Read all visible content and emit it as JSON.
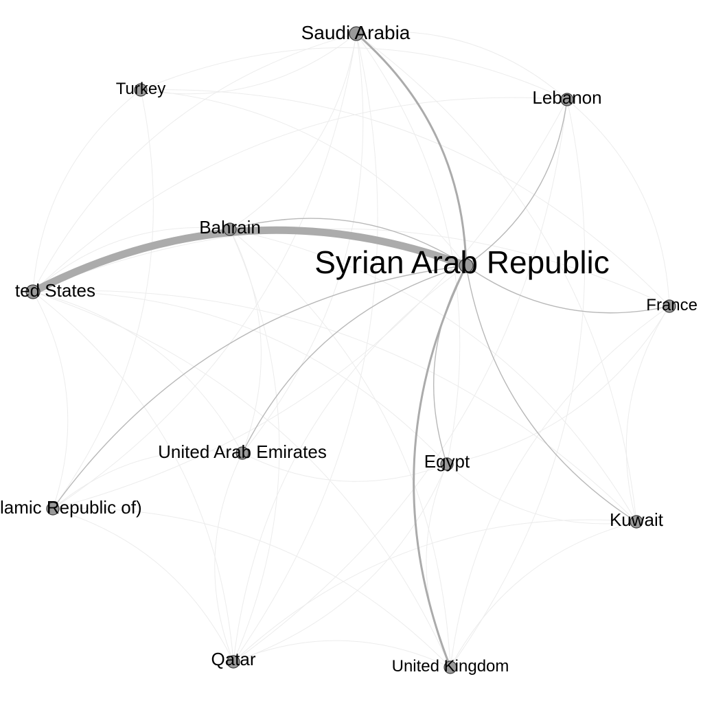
{
  "graph": {
    "colors": {
      "background": "#ffffff",
      "node_fill": "#9a9a9a",
      "node_stroke": "#3a3a3a",
      "label": "#000000",
      "edge_strong": "#ababab",
      "edge_medium": "#b8b8b8",
      "edge_faint": "#ececec"
    },
    "nodes": [
      {
        "id": "syria",
        "label": "Syrian Arab Republic"
      },
      {
        "id": "saudi",
        "label": "Saudi Arabia"
      },
      {
        "id": "turkey",
        "label": "Turkey"
      },
      {
        "id": "lebanon",
        "label": "Lebanon"
      },
      {
        "id": "bahrain",
        "label": "Bahrain"
      },
      {
        "id": "usa",
        "label": "ted States"
      },
      {
        "id": "france",
        "label": "France"
      },
      {
        "id": "uae",
        "label": "United Arab Emirates"
      },
      {
        "id": "egypt",
        "label": "Egypt"
      },
      {
        "id": "iran",
        "label": "lamic Republic of)"
      },
      {
        "id": "kuwait",
        "label": "Kuwait"
      },
      {
        "id": "qatar",
        "label": "Qatar"
      },
      {
        "id": "uk",
        "label": "United Kingdom"
      }
    ],
    "edges": [
      {
        "source": "usa",
        "target": "syria",
        "weight": 10
      },
      {
        "source": "saudi",
        "target": "syria",
        "weight": 3
      },
      {
        "source": "uk",
        "target": "syria",
        "weight": 2
      },
      {
        "source": "kuwait",
        "target": "syria",
        "weight": 1.5
      },
      {
        "source": "lebanon",
        "target": "syria",
        "weight": 1.2
      },
      {
        "source": "egypt",
        "target": "syria",
        "weight": 1.2
      },
      {
        "source": "iran",
        "target": "syria",
        "weight": 1
      },
      {
        "source": "uae",
        "target": "syria",
        "weight": 1
      },
      {
        "source": "france",
        "target": "syria",
        "weight": 1
      },
      {
        "source": "bahrain",
        "target": "syria",
        "weight": 1
      },
      {
        "source": "turkey",
        "target": "syria",
        "weight": 0.5
      },
      {
        "source": "qatar",
        "target": "syria",
        "weight": 0.5
      },
      {
        "source": "usa",
        "target": "saudi",
        "weight": 0.3
      },
      {
        "source": "usa",
        "target": "turkey",
        "weight": 0.3
      },
      {
        "source": "usa",
        "target": "lebanon",
        "weight": 0.3
      },
      {
        "source": "usa",
        "target": "bahrain",
        "weight": 0.3
      },
      {
        "source": "usa",
        "target": "iran",
        "weight": 0.3
      },
      {
        "source": "usa",
        "target": "qatar",
        "weight": 0.3
      },
      {
        "source": "usa",
        "target": "uk",
        "weight": 0.3
      },
      {
        "source": "usa",
        "target": "france",
        "weight": 0.3
      },
      {
        "source": "usa",
        "target": "kuwait",
        "weight": 0.3
      },
      {
        "source": "usa",
        "target": "uae",
        "weight": 0.3
      },
      {
        "source": "usa",
        "target": "egypt",
        "weight": 0.3
      },
      {
        "source": "saudi",
        "target": "turkey",
        "weight": 0.3
      },
      {
        "source": "saudi",
        "target": "lebanon",
        "weight": 0.3
      },
      {
        "source": "saudi",
        "target": "bahrain",
        "weight": 0.3
      },
      {
        "source": "saudi",
        "target": "qatar",
        "weight": 0.3
      },
      {
        "source": "saudi",
        "target": "uae",
        "weight": 0.3
      },
      {
        "source": "saudi",
        "target": "egypt",
        "weight": 0.3
      },
      {
        "source": "saudi",
        "target": "kuwait",
        "weight": 0.3
      },
      {
        "source": "saudi",
        "target": "iran",
        "weight": 0.3
      },
      {
        "source": "turkey",
        "target": "lebanon",
        "weight": 0.3
      },
      {
        "source": "turkey",
        "target": "iran",
        "weight": 0.3
      },
      {
        "source": "turkey",
        "target": "france",
        "weight": 0.3
      },
      {
        "source": "lebanon",
        "target": "uk",
        "weight": 0.3
      },
      {
        "source": "lebanon",
        "target": "france",
        "weight": 0.3
      },
      {
        "source": "lebanon",
        "target": "iran",
        "weight": 0.3
      },
      {
        "source": "lebanon",
        "target": "qatar",
        "weight": 0.3
      },
      {
        "source": "bahrain",
        "target": "qatar",
        "weight": 0.3
      },
      {
        "source": "bahrain",
        "target": "uae",
        "weight": 0.3
      },
      {
        "source": "bahrain",
        "target": "kuwait",
        "weight": 0.3
      },
      {
        "source": "bahrain",
        "target": "uk",
        "weight": 0.3
      },
      {
        "source": "iran",
        "target": "qatar",
        "weight": 0.3
      },
      {
        "source": "iran",
        "target": "uk",
        "weight": 0.3
      },
      {
        "source": "iran",
        "target": "uae",
        "weight": 0.3
      },
      {
        "source": "qatar",
        "target": "uk",
        "weight": 0.3
      },
      {
        "source": "qatar",
        "target": "kuwait",
        "weight": 0.3
      },
      {
        "source": "qatar",
        "target": "uae",
        "weight": 0.3
      },
      {
        "source": "uk",
        "target": "kuwait",
        "weight": 0.3
      },
      {
        "source": "uk",
        "target": "france",
        "weight": 0.3
      },
      {
        "source": "uk",
        "target": "egypt",
        "weight": 0.3
      },
      {
        "source": "kuwait",
        "target": "france",
        "weight": 0.3
      },
      {
        "source": "kuwait",
        "target": "egypt",
        "weight": 0.3
      },
      {
        "source": "egypt",
        "target": "uae",
        "weight": 0.3
      },
      {
        "source": "egypt",
        "target": "qatar",
        "weight": 0.3
      },
      {
        "source": "france",
        "target": "egypt",
        "weight": 0.3
      }
    ]
  }
}
